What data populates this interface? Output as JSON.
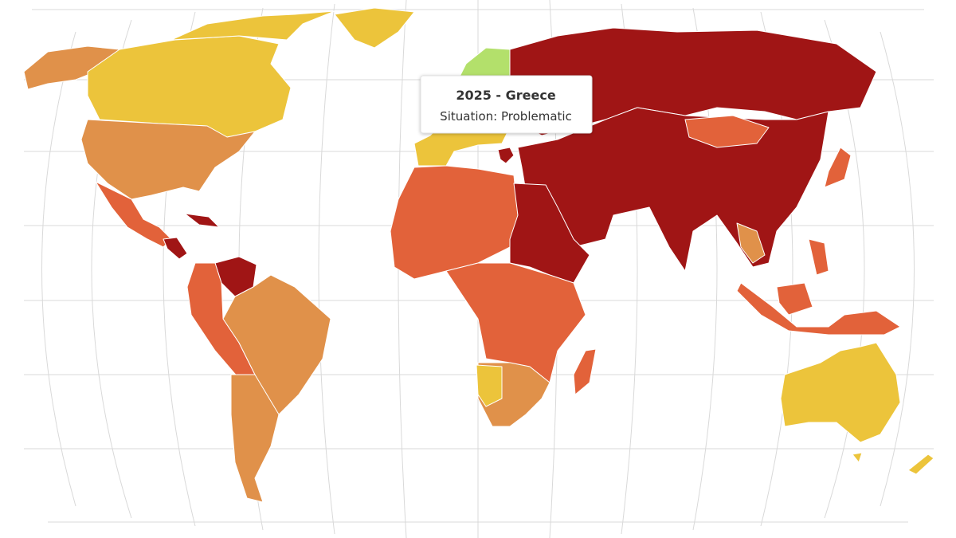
{
  "tooltip": {
    "title": "2025 - Greece",
    "situation": "Situation: Problematic"
  }
}
